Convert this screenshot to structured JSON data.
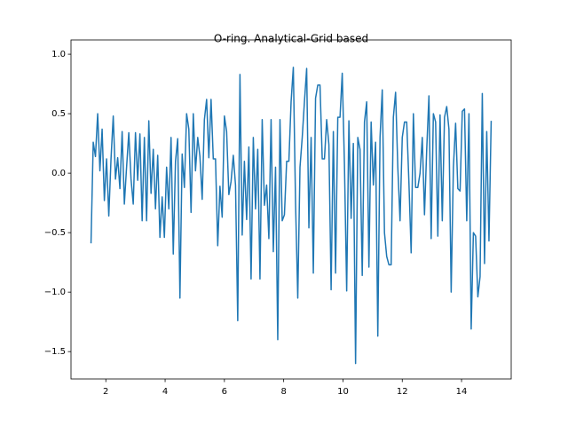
{
  "chart_data": {
    "type": "line",
    "title": "O-ring. Analytical-Grid based",
    "x": [
      1.5,
      1.575,
      1.65,
      1.725,
      1.8,
      1.875,
      1.95,
      2.025,
      2.1,
      2.175,
      2.25,
      2.325,
      2.4,
      2.475,
      2.55,
      2.625,
      2.7,
      2.775,
      2.85,
      2.925,
      3.0,
      3.075,
      3.15,
      3.225,
      3.3,
      3.375,
      3.45,
      3.525,
      3.6,
      3.675,
      3.75,
      3.825,
      3.9,
      3.975,
      4.05,
      4.125,
      4.2,
      4.275,
      4.35,
      4.425,
      4.5,
      4.575,
      4.65,
      4.725,
      4.8,
      4.875,
      4.95,
      5.025,
      5.1,
      5.175,
      5.25,
      5.325,
      5.4,
      5.475,
      5.55,
      5.625,
      5.7,
      5.775,
      5.85,
      5.925,
      6.0,
      6.075,
      6.15,
      6.225,
      6.3,
      6.375,
      6.45,
      6.525,
      6.6,
      6.675,
      6.75,
      6.825,
      6.9,
      6.975,
      7.05,
      7.125,
      7.2,
      7.275,
      7.35,
      7.425,
      7.5,
      7.575,
      7.65,
      7.725,
      7.8,
      7.875,
      7.95,
      8.025,
      8.1,
      8.175,
      8.25,
      8.325,
      8.4,
      8.475,
      8.55,
      8.625,
      8.7,
      8.775,
      8.85,
      8.925,
      9.0,
      9.075,
      9.15,
      9.225,
      9.3,
      9.375,
      9.45,
      9.525,
      9.6,
      9.675,
      9.75,
      9.825,
      9.9,
      9.975,
      10.05,
      10.125,
      10.2,
      10.275,
      10.35,
      10.425,
      10.5,
      10.575,
      10.65,
      10.725,
      10.8,
      10.875,
      10.95,
      11.025,
      11.1,
      11.175,
      11.25,
      11.325,
      11.4,
      11.475,
      11.55,
      11.625,
      11.7,
      11.775,
      11.85,
      11.925,
      12.0,
      12.075,
      12.15,
      12.225,
      12.3,
      12.375,
      12.45,
      12.525,
      12.6,
      12.675,
      12.75,
      12.825,
      12.9,
      12.975,
      13.05,
      13.125,
      13.2,
      13.275,
      13.35,
      13.425,
      13.5,
      13.575,
      13.65,
      13.725,
      13.8,
      13.875,
      13.95,
      14.025,
      14.1,
      14.175,
      14.25,
      14.325,
      14.4,
      14.475,
      14.55,
      14.625,
      14.7,
      14.775,
      14.85,
      14.925,
      15.0
    ],
    "series": [
      {
        "color": "#1f77b4",
        "values": [
          -0.59,
          0.26,
          0.14,
          0.5,
          0.02,
          0.37,
          -0.23,
          0.12,
          -0.36,
          0.12,
          0.48,
          -0.05,
          0.13,
          -0.13,
          0.35,
          -0.26,
          0.05,
          0.34,
          -0.05,
          -0.26,
          0.34,
          -0.06,
          0.33,
          -0.4,
          0.3,
          -0.4,
          0.44,
          -0.17,
          0.2,
          -0.3,
          0.15,
          -0.54,
          -0.2,
          -0.54,
          0.05,
          -0.3,
          0.3,
          -0.68,
          0.1,
          0.29,
          -1.05,
          0.16,
          -0.12,
          0.5,
          0.37,
          -0.33,
          0.5,
          0.02,
          0.3,
          0.14,
          -0.22,
          0.45,
          0.62,
          0.13,
          0.62,
          0.12,
          0.12,
          -0.61,
          -0.11,
          -0.37,
          0.48,
          0.35,
          -0.18,
          -0.07,
          0.15,
          -0.1,
          -1.24,
          0.83,
          -0.52,
          0.1,
          -0.39,
          0.22,
          -0.89,
          0.3,
          -0.3,
          0.2,
          -0.89,
          0.45,
          -0.27,
          -0.1,
          -0.55,
          0.45,
          -0.66,
          0.05,
          -1.4,
          0.45,
          -0.4,
          -0.35,
          0.1,
          0.1,
          0.6,
          0.89,
          -0.25,
          -1.05,
          0.05,
          0.3,
          0.6,
          0.88,
          -0.46,
          0.3,
          -0.84,
          0.63,
          0.74,
          0.74,
          0.12,
          0.12,
          0.45,
          0.24,
          -0.98,
          0.35,
          -0.84,
          0.47,
          0.47,
          0.84,
          0.07,
          -0.99,
          0.44,
          -0.38,
          0.25,
          -1.6,
          0.3,
          0.2,
          -0.86,
          0.43,
          0.6,
          -0.79,
          0.43,
          -0.1,
          0.26,
          -1.37,
          0.3,
          0.7,
          -0.5,
          -0.7,
          -0.77,
          -0.77,
          0.47,
          0.68,
          0.05,
          -0.4,
          0.3,
          0.43,
          0.43,
          -0.08,
          -0.67,
          0.5,
          -0.12,
          -0.12,
          0.0,
          0.3,
          -0.35,
          0.2,
          0.65,
          -0.55,
          0.5,
          0.43,
          -0.53,
          0.49,
          -0.4,
          0.47,
          0.56,
          0.37,
          -1.0,
          0.05,
          0.42,
          -0.13,
          -0.15,
          0.52,
          0.54,
          -0.4,
          0.5,
          -1.31,
          -0.5,
          -0.53,
          -1.04,
          -0.87,
          0.67,
          -0.76,
          0.35,
          -0.57,
          0.44
        ]
      }
    ],
    "xlim": [
      0.825,
      15.675
    ],
    "ylim": [
      -1.73,
      1.12
    ],
    "xticks": [
      2,
      4,
      6,
      8,
      10,
      12,
      14
    ],
    "yticks": [
      {
        "value": -1.5,
        "label": "−1.5"
      },
      {
        "value": -1.0,
        "label": "−1.0"
      },
      {
        "value": -0.5,
        "label": "−0.5"
      },
      {
        "value": 0.0,
        "label": "0.0"
      },
      0.5,
      {
        "value": 1.0,
        "label": "1.0"
      }
    ],
    "grid": false
  }
}
